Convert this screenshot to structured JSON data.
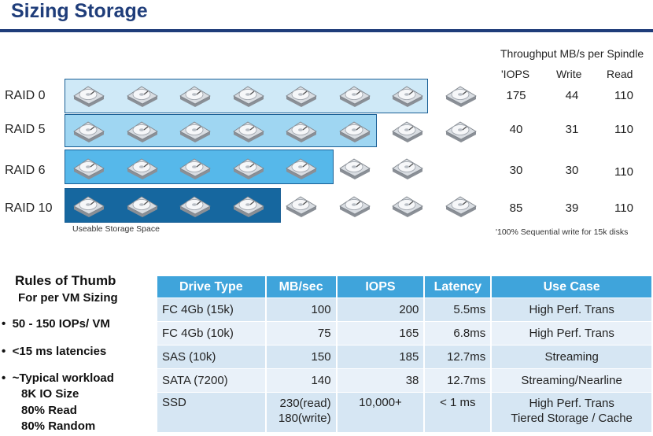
{
  "title": "Sizing Storage",
  "header": {
    "throughput": "Throughput MB/s per Spindle",
    "iops": "'IOPS",
    "write": "Write",
    "read": "Read"
  },
  "raid_rows": [
    {
      "label": "RAID 0",
      "usable_disks": 7,
      "total_disks": 8,
      "iops": "175",
      "write": "44",
      "read": "110"
    },
    {
      "label": "RAID 5",
      "usable_disks": 6,
      "total_disks": 8,
      "iops": "40",
      "write": "31",
      "read": "110"
    },
    {
      "label": "RAID 6",
      "usable_disks": 5,
      "total_disks": 7,
      "iops": "30",
      "write": "30",
      "read": "110"
    },
    {
      "label": "RAID 10",
      "usable_disks": 4,
      "total_disks": 8,
      "iops": "85",
      "write": "39",
      "read": "110"
    }
  ],
  "box_colors": [
    "#cfe9f7",
    "#9fd6f2",
    "#56b8ea",
    "#16679f"
  ],
  "usable_label": "Useable Storage Space",
  "footnote": "'100% Sequential write for 15k disks",
  "rules": {
    "title": "Rules of Thumb",
    "subtitle": "For per VM Sizing",
    "bullets": [
      "50 - 150 IOPs/ VM",
      "<15 ms latencies",
      "~Typical workload"
    ],
    "workload": [
      "8K IO Size",
      "80% Read",
      "80% Random"
    ]
  },
  "table": {
    "headers": [
      "Drive Type",
      "MB/sec",
      "IOPS",
      "Latency",
      "Use Case"
    ],
    "rows": [
      {
        "type": "FC 4Gb  (15k)",
        "mbsec": "100",
        "iops": "200",
        "latency": "5.5ms",
        "use": "High Perf. Trans"
      },
      {
        "type": "FC 4Gb  (10k)",
        "mbsec": "75",
        "iops": "165",
        "latency": "6.8ms",
        "use": "High Perf. Trans"
      },
      {
        "type": "SAS (10k)",
        "mbsec": "150",
        "iops": "185",
        "latency": "12.7ms",
        "use": "Streaming"
      },
      {
        "type": "SATA (7200)",
        "mbsec": "140",
        "iops": "38",
        "latency": "12.7ms",
        "use": "Streaming/Nearline"
      }
    ],
    "ssd": {
      "type": "SSD",
      "mbsec_read": "230(read)",
      "mbsec_write": "180(write)",
      "iops": "10,000+",
      "latency": "< 1 ms",
      "use_1": "High Perf. Trans",
      "use_2": "Tiered Storage / Cache"
    }
  }
}
